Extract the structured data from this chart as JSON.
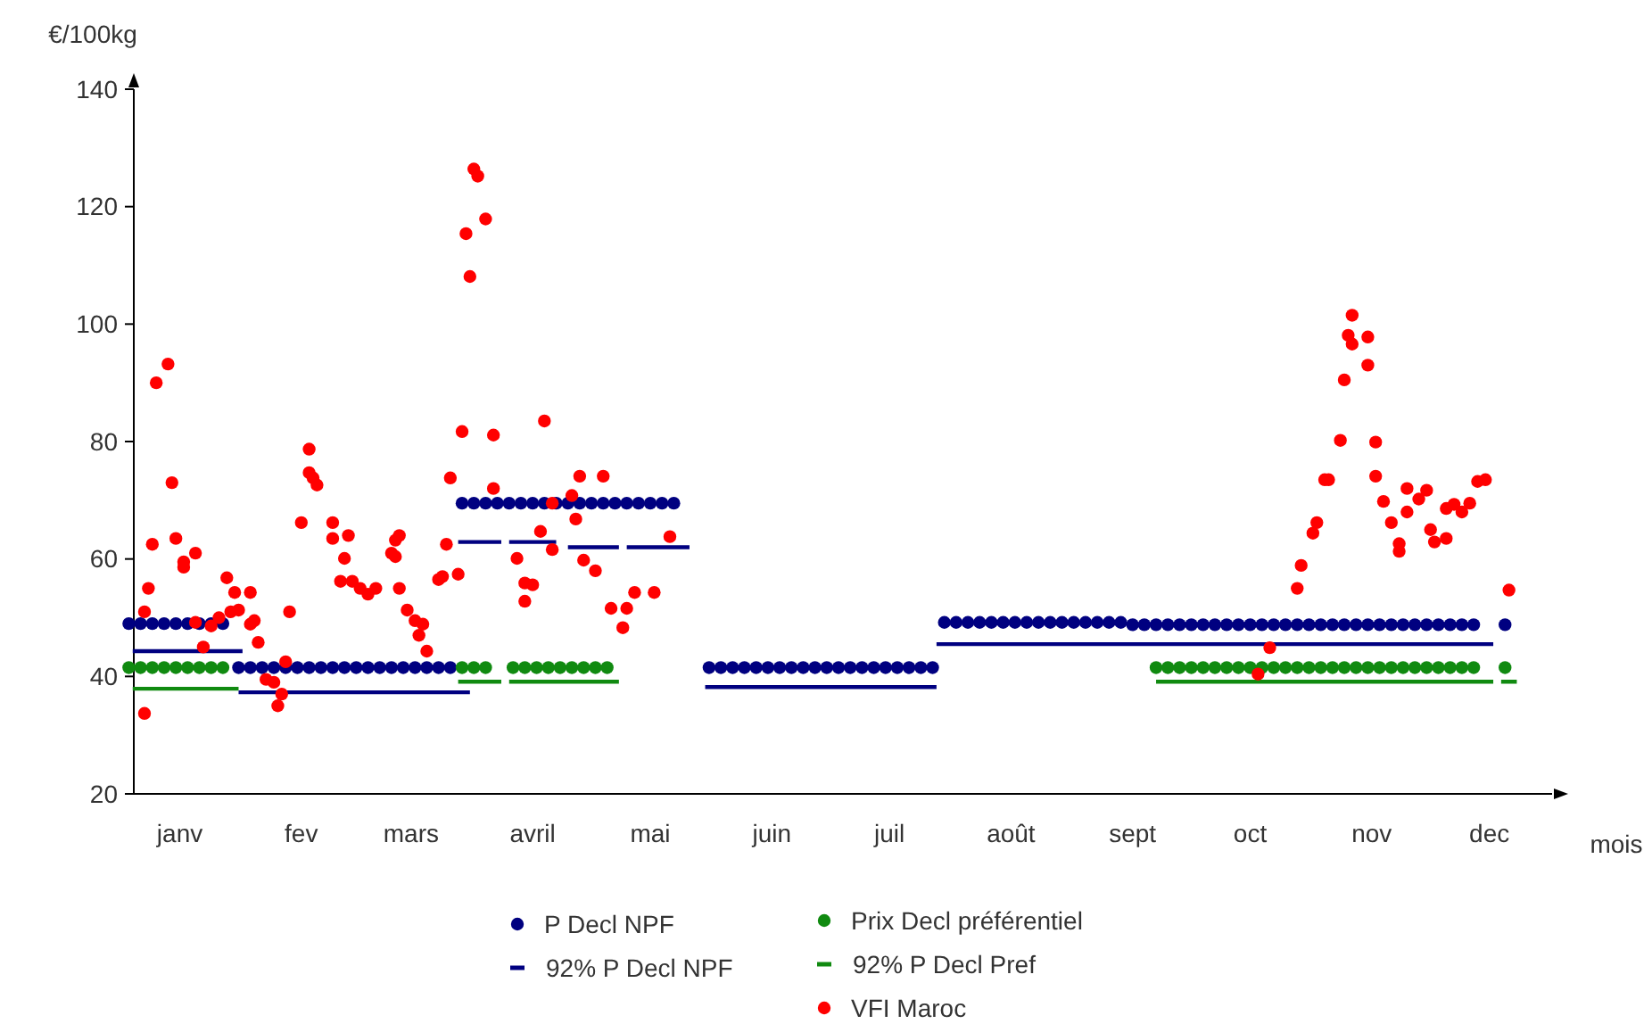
{
  "chart_data": {
    "type": "scatter",
    "xlabel": "mois",
    "ylabel": "€/100kg",
    "xlim": [
      "--01-01",
      "--12-31"
    ],
    "xticks": [
      {
        "value": "--01-15",
        "label": "janv"
      },
      {
        "value": "--02-15",
        "label": "fev"
      },
      {
        "value": "--03-15",
        "label": "mars"
      },
      {
        "value": "--04-15",
        "label": "avril"
      },
      {
        "value": "--05-15",
        "label": "mai"
      },
      {
        "value": "--06-15",
        "label": "juin"
      },
      {
        "value": "--07-15",
        "label": "juil"
      },
      {
        "value": "--08-15",
        "label": "août"
      },
      {
        "value": "--09-15",
        "label": "sept"
      },
      {
        "value": "--10-15",
        "label": "oct"
      },
      {
        "value": "--11-15",
        "label": "nov"
      },
      {
        "value": "--12-15",
        "label": "dec"
      }
    ],
    "ylim": [
      20,
      140
    ],
    "yticks": [
      20,
      40,
      60,
      80,
      100,
      120,
      140
    ],
    "grid": false,
    "legend": "bottom",
    "marker": "circle",
    "series": [
      {
        "name": "P Decl NPF",
        "color": "#000080",
        "x": [
          "--01-02",
          "--01-05",
          "--01-08",
          "--01-11",
          "--01-14",
          "--01-17",
          "--01-20",
          "--01-23",
          "--01-26",
          "--01-30",
          "--02-02",
          "--02-05",
          "--02-08",
          "--02-11",
          "--02-14",
          "--02-17",
          "--02-20",
          "--02-23",
          "--02-26",
          "--03-01",
          "--03-04",
          "--03-07",
          "--03-10",
          "--03-13",
          "--03-16",
          "--03-19",
          "--03-22",
          "--03-25",
          "--03-28",
          "--03-31",
          "--04-03",
          "--04-06",
          "--04-09",
          "--04-12",
          "--04-15",
          "--04-18",
          "--04-21",
          "--04-24",
          "--04-27",
          "--04-30",
          "--05-03",
          "--05-06",
          "--05-09",
          "--05-12",
          "--05-15",
          "--05-18",
          "--05-21",
          "--05-30",
          "--06-02",
          "--06-05",
          "--06-08",
          "--06-11",
          "--06-14",
          "--06-17",
          "--06-20",
          "--06-23",
          "--06-26",
          "--06-29",
          "--07-02",
          "--07-05",
          "--07-08",
          "--07-11",
          "--07-14",
          "--07-17",
          "--07-20",
          "--07-23",
          "--07-26",
          "--07-29",
          "--08-01",
          "--08-04",
          "--08-07",
          "--08-10",
          "--08-13",
          "--08-16",
          "--08-19",
          "--08-22",
          "--08-25",
          "--08-28",
          "--08-31",
          "--09-03",
          "--09-06",
          "--09-09",
          "--09-12",
          "--09-15",
          "--09-18",
          "--09-21",
          "--09-24",
          "--09-27",
          "--09-30",
          "--10-03",
          "--10-06",
          "--10-09",
          "--10-12",
          "--10-15",
          "--10-18",
          "--10-21",
          "--10-24",
          "--10-27",
          "--10-30",
          "--11-02",
          "--11-05",
          "--11-08",
          "--11-11",
          "--11-14",
          "--11-17",
          "--11-20",
          "--11-23",
          "--11-26",
          "--11-29",
          "--12-02",
          "--12-05",
          "--12-08",
          "--12-11",
          "--12-19"
        ],
        "values": [
          49,
          49,
          49,
          49,
          49,
          49,
          49,
          49,
          49,
          41.5,
          41.5,
          41.5,
          41.5,
          41.5,
          41.5,
          41.5,
          41.5,
          41.5,
          41.5,
          41.5,
          41.5,
          41.5,
          41.5,
          41.5,
          41.5,
          41.5,
          41.5,
          41.5,
          69.5,
          69.5,
          69.5,
          69.5,
          69.5,
          69.5,
          69.5,
          69.5,
          69.5,
          69.5,
          69.5,
          69.5,
          69.5,
          69.5,
          69.5,
          69.5,
          69.5,
          69.5,
          69.5,
          41.5,
          41.5,
          41.5,
          41.5,
          41.5,
          41.5,
          41.5,
          41.5,
          41.5,
          41.5,
          41.5,
          41.5,
          41.5,
          41.5,
          41.5,
          41.5,
          41.5,
          41.5,
          41.5,
          41.5,
          49.2,
          49.2,
          49.2,
          49.2,
          49.2,
          49.2,
          49.2,
          49.2,
          49.2,
          49.2,
          49.2,
          49.2,
          49.2,
          49.2,
          49.2,
          49.2,
          48.8,
          48.8,
          48.8,
          48.8,
          48.8,
          48.8,
          48.8,
          48.8,
          48.8,
          48.8,
          48.8,
          48.8,
          48.8,
          48.8,
          48.8,
          48.8,
          48.8,
          48.8,
          48.8,
          48.8,
          48.8,
          48.8,
          48.8,
          48.8,
          48.8,
          48.8,
          48.8,
          48.8,
          48.8,
          48.8,
          48.8
        ]
      },
      {
        "name": "92% P Decl NPF",
        "type": "line",
        "marker": "none",
        "color": "#000080",
        "x": [
          "--01-03",
          "--01-31",
          null,
          "--01-30",
          "--03-30",
          null,
          "--03-27",
          "--04-07",
          null,
          "--04-09",
          "--04-21",
          null,
          "--04-24",
          "--05-07",
          null,
          "--05-09",
          "--05-25",
          null,
          "--05-29",
          "--07-27",
          null,
          "--07-27",
          "--12-16"
        ],
        "values": [
          44.3,
          44.3,
          null,
          37.3,
          37.3,
          null,
          62.9,
          62.9,
          null,
          62.9,
          62.9,
          null,
          62,
          62,
          null,
          62,
          62,
          null,
          38.2,
          38.2,
          null,
          45.5,
          45.5
        ]
      },
      {
        "name": "Prix Decl préférentiel",
        "color": "#108a10",
        "x": [
          "--01-02",
          "--01-05",
          "--01-08",
          "--01-11",
          "--01-14",
          "--01-17",
          "--01-20",
          "--01-23",
          "--01-26",
          "--03-28",
          "--03-31",
          "--04-03",
          "--04-10",
          "--04-13",
          "--04-16",
          "--04-19",
          "--04-22",
          "--04-25",
          "--04-28",
          "--05-01",
          "--05-04",
          "--09-21",
          "--09-24",
          "--09-27",
          "--09-30",
          "--10-03",
          "--10-06",
          "--10-09",
          "--10-12",
          "--10-15",
          "--10-18",
          "--10-21",
          "--10-24",
          "--10-27",
          "--10-30",
          "--11-02",
          "--11-05",
          "--11-08",
          "--11-11",
          "--11-14",
          "--11-17",
          "--11-20",
          "--11-23",
          "--11-26",
          "--11-29",
          "--12-02",
          "--12-05",
          "--12-08",
          "--12-11",
          "--12-19"
        ],
        "values": [
          41.5,
          41.5,
          41.5,
          41.5,
          41.5,
          41.5,
          41.5,
          41.5,
          41.5,
          41.5,
          41.5,
          41.5,
          41.5,
          41.5,
          41.5,
          41.5,
          41.5,
          41.5,
          41.5,
          41.5,
          41.5,
          41.5,
          41.5,
          41.5,
          41.5,
          41.5,
          41.5,
          41.5,
          41.5,
          41.5,
          41.5,
          41.5,
          41.5,
          41.5,
          41.5,
          41.5,
          41.5,
          41.5,
          41.5,
          41.5,
          41.5,
          41.5,
          41.5,
          41.5,
          41.5,
          41.5,
          41.5,
          41.5,
          41.5,
          41.5
        ]
      },
      {
        "name": "92% P Decl Pref",
        "type": "line",
        "marker": "none",
        "color": "#108a10",
        "x": [
          "--01-03",
          "--01-30",
          null,
          "--03-27",
          "--04-07",
          null,
          "--04-09",
          "--05-07",
          null,
          "--09-21",
          "--12-16",
          null,
          "--12-18",
          "--12-22"
        ],
        "values": [
          37.9,
          37.9,
          null,
          39.1,
          39.1,
          null,
          39.1,
          39.1,
          null,
          39.1,
          39.1,
          null,
          39.1,
          39.1
        ]
      },
      {
        "name": "VFI Maroc",
        "color": "#ff0000",
        "x": [
          "--01-06",
          "--01-06",
          "--01-07",
          "--01-08",
          "--01-09",
          "--01-12",
          "--01-13",
          "--01-14",
          "--01-16",
          "--01-16",
          "--01-19",
          "--01-19",
          "--01-21",
          "--01-23",
          "--01-25",
          "--01-27",
          "--01-28",
          "--01-29",
          "--01-30",
          "--02-02",
          "--02-02",
          "--02-03",
          "--02-04",
          "--02-06",
          "--02-08",
          "--02-09",
          "--02-10",
          "--02-11",
          "--02-12",
          "--02-15",
          "--02-17",
          "--02-17",
          "--02-18",
          "--02-19",
          "--02-23",
          "--02-23",
          "--02-25",
          "--02-26",
          "--02-27",
          "--02-28",
          "--03-02",
          "--03-04",
          "--03-06",
          "--03-10",
          "--03-11",
          "--03-11",
          "--03-12",
          "--03-12",
          "--03-14",
          "--03-16",
          "--03-17",
          "--03-18",
          "--03-19",
          "--03-22",
          "--03-23",
          "--03-24",
          "--03-25",
          "--03-27",
          "--03-28",
          "--03-29",
          "--03-30",
          "--03-31",
          "--04-01",
          "--04-03",
          "--04-05",
          "--04-05",
          "--04-11",
          "--04-13",
          "--04-13",
          "--04-15",
          "--04-17",
          "--04-18",
          "--04-20",
          "--04-20",
          "--04-25",
          "--04-26",
          "--04-27",
          "--04-28",
          "--05-01",
          "--05-03",
          "--05-05",
          "--05-08",
          "--05-09",
          "--05-11",
          "--05-16",
          "--05-20",
          "--10-17",
          "--10-20",
          "--10-27",
          "--10-28",
          "--10-31",
          "--11-01",
          "--11-03",
          "--11-04",
          "--11-07",
          "--11-08",
          "--11-09",
          "--11-10",
          "--11-10",
          "--11-14",
          "--11-14",
          "--11-16",
          "--11-16",
          "--11-18",
          "--11-20",
          "--11-22",
          "--11-22",
          "--11-24",
          "--11-24",
          "--11-27",
          "--11-29",
          "--11-30",
          "--12-01",
          "--12-04",
          "--12-04",
          "--12-06",
          "--12-08",
          "--12-10",
          "--12-12",
          "--12-14",
          "--12-20"
        ],
        "values": [
          33.7,
          51,
          55,
          62.5,
          90,
          93.2,
          73,
          63.5,
          58.6,
          59.5,
          61,
          49.2,
          45,
          48.6,
          50,
          56.8,
          51,
          54.3,
          51.3,
          54.3,
          48.9,
          49.5,
          45.8,
          39.5,
          39,
          35,
          37,
          42.5,
          51,
          66.2,
          78.7,
          74.7,
          73.8,
          72.6,
          66.2,
          63.5,
          56.2,
          60.1,
          64,
          56.2,
          55,
          54,
          55,
          61,
          60.4,
          63.2,
          64,
          55,
          51.3,
          49.5,
          47,
          48.9,
          44.3,
          56.5,
          57,
          62.5,
          73.8,
          57.4,
          81.7,
          115.4,
          108.1,
          126.4,
          125.2,
          117.9,
          81.1,
          72,
          60.1,
          52.8,
          55.9,
          55.6,
          64.7,
          83.5,
          69.5,
          61.6,
          70.8,
          66.8,
          74.1,
          59.8,
          58,
          74.1,
          51.6,
          48.3,
          51.6,
          54.3,
          54.3,
          63.8,
          40.4,
          44.9,
          55,
          58.9,
          64.4,
          66.2,
          73.5,
          73.5,
          80.2,
          90.5,
          98.1,
          101.5,
          96.6,
          97.8,
          93,
          79.9,
          74.1,
          69.8,
          66.2,
          62.6,
          61.3,
          68,
          72,
          70.2,
          71.7,
          65,
          62.9,
          63.5,
          68.6,
          69.3,
          68,
          69.5,
          73.2,
          73.5,
          54.7
        ]
      }
    ]
  }
}
